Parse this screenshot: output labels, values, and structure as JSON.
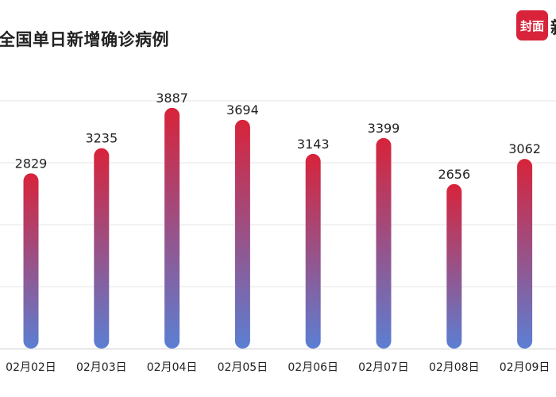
{
  "title": "全国单日新增确诊病例",
  "logo": {
    "text": "封面",
    "extra": "新"
  },
  "colors": {
    "bar_top": "#d8233a",
    "bar_bottom": "#5b7fd3",
    "grid": "#e6e6e6",
    "label": "#222222",
    "axis_label": "#222222"
  },
  "chart_data": {
    "type": "bar",
    "title": "全国单日新增确诊病例",
    "xlabel": "",
    "ylabel": "",
    "categories": [
      "02月02日",
      "02月03日",
      "02月04日",
      "02月05日",
      "02月06日",
      "02月07日",
      "02月08日",
      "02月09日"
    ],
    "values": [
      2829,
      3235,
      3887,
      3694,
      3143,
      3399,
      2656,
      3062
    ],
    "ylim": [
      0,
      4000
    ],
    "grid": true,
    "data_labels": true,
    "legend": "none"
  }
}
